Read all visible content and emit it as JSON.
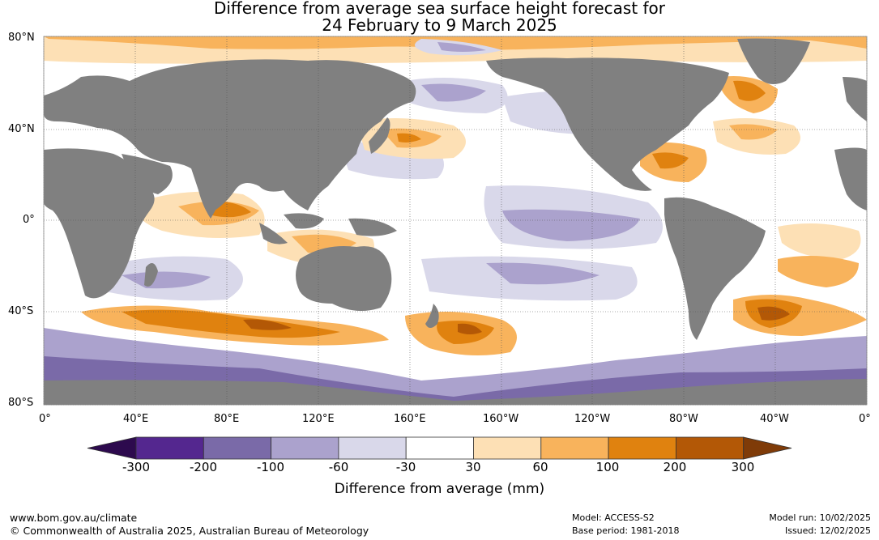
{
  "title": {
    "line1": "Difference from average sea surface height forecast for",
    "line2": "24 February to 9 March 2025"
  },
  "map": {
    "y_ticks": [
      "80°N",
      "40°N",
      "0°",
      "40°S",
      "80°S"
    ],
    "x_ticks": [
      "0°",
      "40°E",
      "80°E",
      "120°E",
      "160°E",
      "160°W",
      "120°W",
      "80°W",
      "40°W",
      "0°"
    ],
    "land_color": "#808080",
    "ocean_base_color": "#ffffff"
  },
  "colorbar": {
    "title": "Difference from average (mm)",
    "labels": [
      "-300",
      "-200",
      "-100",
      "-60",
      "-30",
      "30",
      "60",
      "100",
      "200",
      "300"
    ],
    "colors": [
      "#2d0a4e",
      "#54278f",
      "#7a6aa8",
      "#aba2cd",
      "#d9d8ea",
      "#ffffff",
      "#fde0b5",
      "#f8b35c",
      "#e0820f",
      "#b35806",
      "#7f3b08"
    ]
  },
  "footer": {
    "website": "www.bom.gov.au/climate",
    "copyright": "© Commonwealth of Australia 2025, Australian Bureau of Meteorology",
    "model": "Model: ACCESS-S2",
    "base_period": "Base period: 1981-2018",
    "model_run": "Model run: 10/02/2025",
    "issued": "Issued: 12/02/2025"
  }
}
